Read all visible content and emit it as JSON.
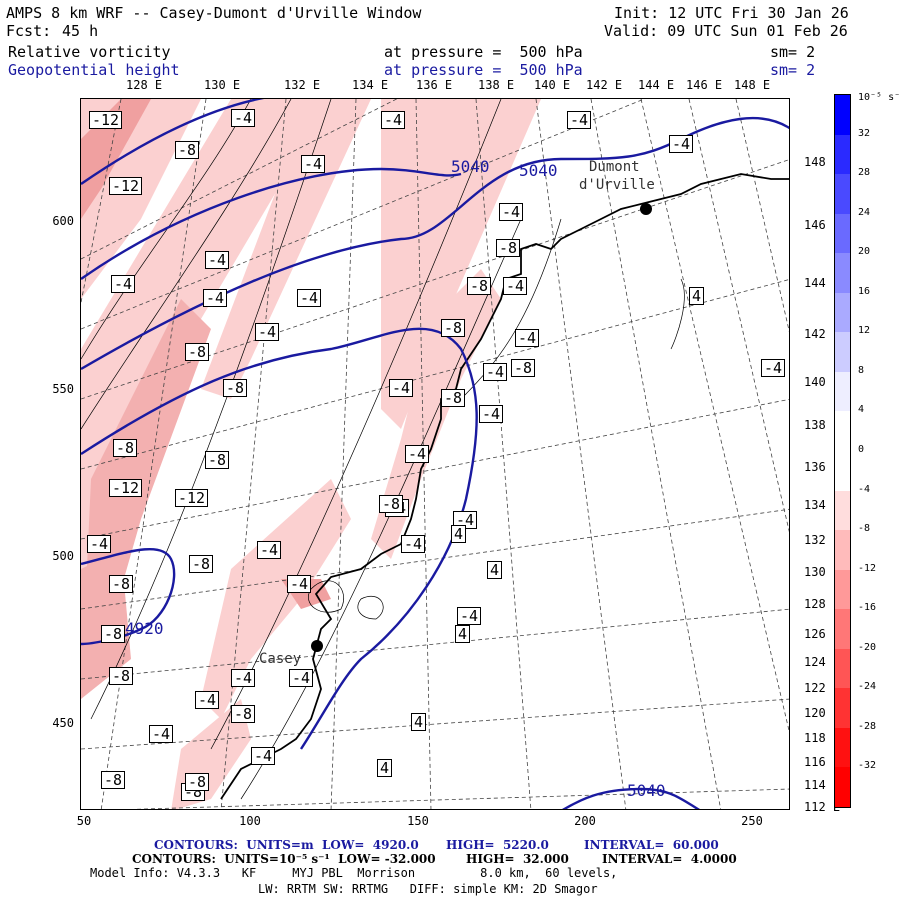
{
  "header": {
    "title": "AMPS 8 km WRF -- Casey-Dumont d'Urville Window",
    "init": "Init: 12 UTC Fri 30 Jan 26",
    "fcst_label": "Fcst:",
    "fcst_value": "45 h",
    "valid": "Valid: 09 UTC Sun 01 Feb 26",
    "field1": "Relative vorticity",
    "field1_level": "at pressure =  500 hPa",
    "field1_sm": "sm= 2",
    "field2": "Geopotential height",
    "field2_level": "at pressure =  500 hPa",
    "field2_sm": "sm= 2"
  },
  "axes": {
    "y_ticks": [
      "600",
      "550",
      "500",
      "450"
    ],
    "x_ticks": [
      "50",
      "100",
      "150",
      "200",
      "250"
    ],
    "top_lon": [
      "128 E",
      "130 E",
      "132 E",
      "134 E",
      "136 E",
      "138 E",
      "140 E",
      "142 E",
      "144 E",
      "146 E",
      "148 E"
    ],
    "right_lon": [
      "148 E",
      "146 E",
      "144 E",
      "142 E",
      "140 E",
      "138 E",
      "136 E",
      "134 E",
      "132 E",
      "130 E",
      "128 E",
      "126 E",
      "124 E",
      "122 E",
      "120 E",
      "118 E",
      "116 E",
      "114 E",
      "112 E"
    ]
  },
  "colorbar": {
    "unit": "10⁻⁵ s⁻¹",
    "labels": [
      "32",
      "28",
      "24",
      "20",
      "16",
      "12",
      "8",
      "4",
      "0",
      "-4",
      "-8",
      "-12",
      "-16",
      "-20",
      "-24",
      "-28",
      "-32"
    ],
    "colors": [
      "#0000ff",
      "#2a2aff",
      "#4a4aff",
      "#6a6aff",
      "#8a8aff",
      "#aaaaff",
      "#ccccff",
      "#eeeeff",
      "#ffffff",
      "#ffffff",
      "#ffdddd",
      "#ffbbbb",
      "#ff9999",
      "#ff7777",
      "#ff5555",
      "#ff3333",
      "#ff1111",
      "#ff0000"
    ]
  },
  "map_labels": {
    "places": [
      "Dumont",
      "d'Urville",
      "Casey"
    ],
    "height_labels": [
      "5040",
      "5040",
      "4920",
      "5040"
    ],
    "vort_labels": [
      "-12",
      "-4",
      "-4",
      "-4",
      "-4",
      "-8",
      "-4",
      "-12",
      "-4",
      "-4",
      "-8",
      "-4",
      "-8",
      "-4",
      "-4",
      "-8",
      "-8",
      "-8",
      "-4",
      "-8",
      "-8",
      "-8",
      "-4",
      "-8",
      "-4",
      "-12",
      "-4",
      "-12",
      "-4",
      "-8",
      "-4",
      "-4",
      "-8",
      "-4",
      "-8",
      "-8",
      "-4",
      "-4",
      "-4",
      "-8",
      "-4",
      "-4",
      "-8",
      "4",
      "4",
      "4",
      "4",
      "-4",
      "4",
      "4",
      "-4",
      "-8",
      "-8",
      "-4",
      "-4",
      "-8",
      "-4",
      "-4",
      "-4"
    ]
  },
  "footer": {
    "line1_a": "CONTOURS:  UNITS=m  LOW=  4920.0",
    "line1_b": "HIGH=  5220.0",
    "line1_c": "INTERVAL=  60.000",
    "line2_a": "CONTOURS:  UNITS=10⁻⁵ s⁻¹  LOW= -32.000",
    "line2_b": "HIGH=  32.000",
    "line2_c": "INTERVAL=  4.0000",
    "model1": "Model Info: V4.3.3   KF     MYJ PBL  Morrison         8.0 km,  60 levels,",
    "model2": "LW: RRTM SW: RRTMG   DIFF: simple KM: 2D Smagor"
  },
  "colors": {
    "height_contour": "#1a1aa0",
    "vort_neg_light": "#fbd0d0",
    "vort_neg_mid": "#f0a0a0",
    "coast": "#000000"
  }
}
